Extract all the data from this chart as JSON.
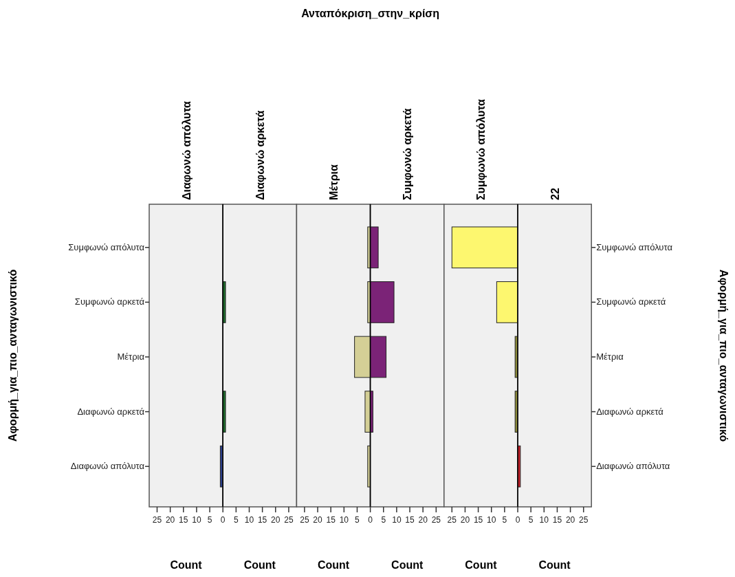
{
  "chart_data": [
    {
      "type": "bar",
      "orientation": "horizontal",
      "title": "Διαφωνώ απόλυτα",
      "xlabel": "Count",
      "ylabel": "Αφορμή_για_πιο_ανταγωνιστικό",
      "annotations": [
        "Ανταπόκριση_στην_κρίση"
      ],
      "categories": [
        "Συμφωνώ απόλυτα",
        "Συμφωνώ αρκετά",
        "Μέτρια",
        "Διαφωνώ αρκετά",
        "Διαφωνώ απόλυτα"
      ],
      "values": [
        0,
        0,
        0,
        0,
        1
      ],
      "color": "#2b3f8c",
      "xlim": [
        28,
        0
      ],
      "xticks": [
        25,
        20,
        15,
        10,
        5,
        0
      ]
    },
    {
      "type": "bar",
      "orientation": "horizontal",
      "title": "Διαφωνώ αρκετά",
      "xlabel": "Count",
      "categories": [
        null,
        null,
        null,
        null,
        null
      ],
      "values": [
        0,
        1,
        0,
        1,
        0
      ],
      "color": "#1e6b2c",
      "xlim": [
        0,
        28
      ],
      "xticks": [
        5,
        10,
        15,
        20,
        25
      ],
      "tick_labels": "x"
    },
    {
      "type": "bar",
      "orientation": "horizontal",
      "title": "Μέτρια",
      "xlabel": "Count",
      "categories": [
        null,
        null,
        null,
        null,
        null
      ],
      "values": [
        1,
        1,
        6,
        2,
        1
      ],
      "color": "#d4cf96",
      "xlim": [
        28,
        0
      ],
      "xticks": [
        25,
        20,
        15,
        10,
        5,
        0
      ],
      "tick_labels": "x"
    },
    {
      "type": "bar",
      "orientation": "horizontal",
      "title": "Συμφωνώ αρκετά",
      "xlabel": "Count",
      "categories": [
        null,
        null,
        null,
        null,
        null
      ],
      "values": [
        3,
        9,
        6,
        1,
        0
      ],
      "color": "#7b2377",
      "xlim": [
        0,
        28
      ],
      "xticks": [
        5,
        10,
        15,
        20,
        25
      ],
      "tick_labels": "x"
    },
    {
      "type": "bar",
      "orientation": "horizontal",
      "title": "Συμφωνώ απόλυτα",
      "xlabel": "Count",
      "categories": [
        null,
        null,
        null,
        null,
        null
      ],
      "values": [
        25,
        8,
        1,
        1,
        0
      ],
      "colors": [
        "#fdf76f",
        "#fdf76f",
        "#8b8a3a",
        "#8b8a3a",
        null
      ],
      "xlim": [
        28,
        0
      ],
      "xticks": [
        25,
        20,
        15,
        10,
        5,
        0
      ],
      "tick_labels": "x"
    },
    {
      "type": "bar",
      "orientation": "horizontal",
      "title": "22",
      "xlabel": "Count",
      "ylabel": "Αφορμή_για_πιο_ανταγωνιστικό",
      "categories": [
        "Συμφωνώ απόλυτα",
        "Συμφωνώ αρκετά",
        "Μέτρια",
        "Διαφωνώ αρκετά",
        "Διαφωνώ απόλυτα"
      ],
      "values": [
        0,
        0,
        0,
        0,
        1
      ],
      "color": "#c8202a",
      "xlim": [
        0,
        28
      ],
      "xticks": [
        5,
        10,
        15,
        20,
        25
      ]
    }
  ]
}
